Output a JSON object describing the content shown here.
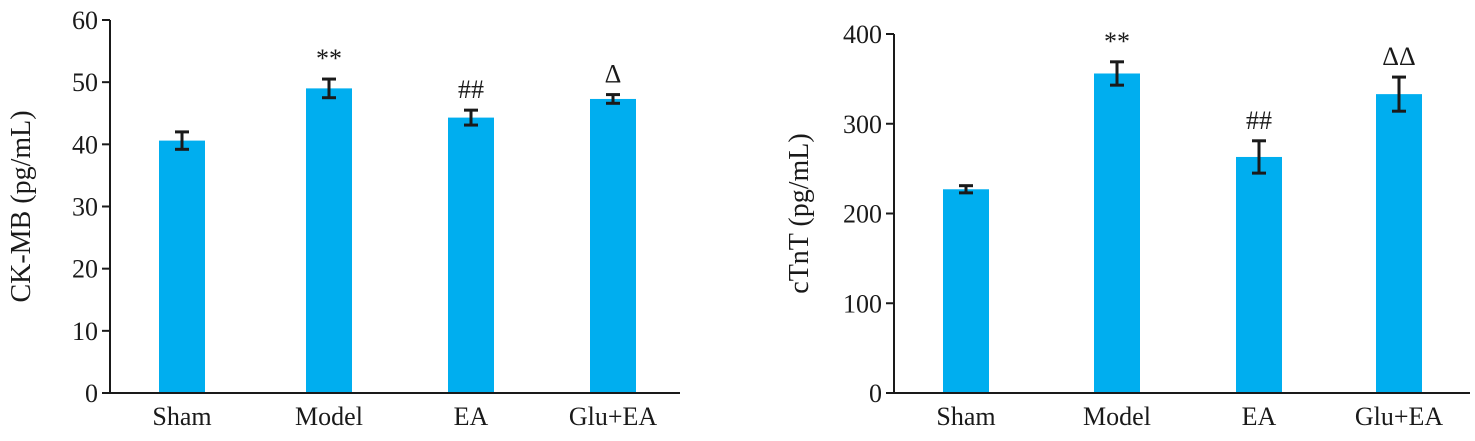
{
  "chart_data": [
    {
      "type": "bar",
      "ylabel": "CK-MB (pg/mL)",
      "xlabel": "",
      "categories": [
        "Sham",
        "Model",
        "EA",
        "Glu+EA"
      ],
      "values": [
        40.6,
        49.0,
        44.3,
        47.3
      ],
      "errors": [
        1.4,
        1.5,
        1.2,
        0.7
      ],
      "annotations": [
        "",
        "**",
        "##",
        "Δ"
      ],
      "ylim": [
        0,
        60
      ],
      "yticks": [
        "0",
        "10",
        "20",
        "30",
        "40",
        "50",
        "60"
      ],
      "bar_color": "#00AEEF",
      "grid": false
    },
    {
      "type": "bar",
      "ylabel": "cTnT (pg/mL)",
      "xlabel": "",
      "categories": [
        "Sham",
        "Model",
        "EA",
        "Glu+EA"
      ],
      "values": [
        227,
        356,
        263,
        333
      ],
      "errors": [
        4,
        13,
        18,
        19
      ],
      "annotations": [
        "",
        "**",
        "##",
        "ΔΔ"
      ],
      "ylim": [
        0,
        400
      ],
      "yticks": [
        "0",
        "100",
        "200",
        "300",
        "400"
      ],
      "bar_color": "#00AEEF",
      "grid": false
    }
  ]
}
